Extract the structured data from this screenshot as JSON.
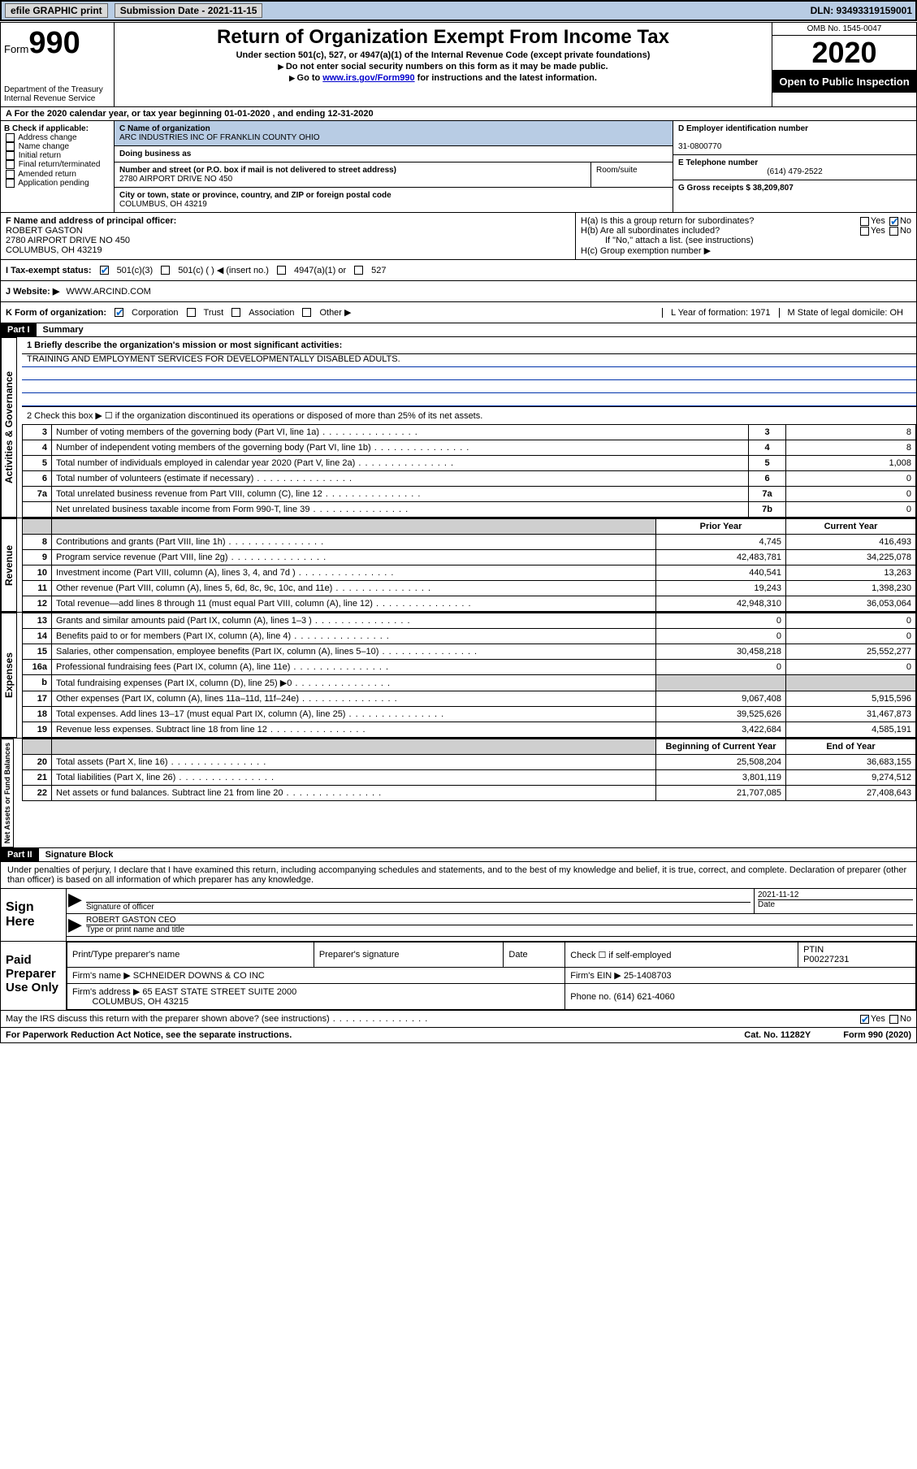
{
  "topbar": {
    "efile_label": "efile GRAPHIC print",
    "submission_label": "Submission Date - 2021-11-15",
    "dln_label": "DLN: 93493319159001"
  },
  "header": {
    "form_word": "Form",
    "form_number": "990",
    "dept": "Department of the Treasury\nInternal Revenue Service",
    "title": "Return of Organization Exempt From Income Tax",
    "subtitle": "Under section 501(c), 527, or 4947(a)(1) of the Internal Revenue Code (except private foundations)",
    "note1": "Do not enter social security numbers on this form as it may be made public.",
    "note2_prefix": "Go to ",
    "note2_link": "www.irs.gov/Form990",
    "note2_suffix": " for instructions and the latest information.",
    "omb": "OMB No. 1545-0047",
    "year": "2020",
    "open_public": "Open to Public Inspection"
  },
  "lineA": "A   For the 2020 calendar year, or tax year beginning 01-01-2020    , and ending 12-31-2020",
  "colB": {
    "heading": "B Check if applicable:",
    "items": [
      "Address change",
      "Name change",
      "Initial return",
      "Final return/terminated",
      "Amended return",
      "Application pending"
    ]
  },
  "colC": {
    "name_label": "C Name of organization",
    "name": "ARC INDUSTRIES INC OF FRANKLIN COUNTY OHIO",
    "dba_label": "Doing business as",
    "street_label": "Number and street (or P.O. box if mail is not delivered to street address)",
    "room_label": "Room/suite",
    "street": "2780 AIRPORT DRIVE NO 450",
    "city_label": "City or town, state or province, country, and ZIP or foreign postal code",
    "city": "COLUMBUS, OH  43219"
  },
  "colD": {
    "ein_label": "D Employer identification number",
    "ein": "31-0800770",
    "phone_label": "E Telephone number",
    "phone": "(614) 479-2522",
    "gross_label": "G Gross receipts $ 38,209,807"
  },
  "rowF": {
    "label": "F  Name and address of principal officer:",
    "name": "ROBERT GASTON",
    "addr1": "2780 AIRPORT DRIVE NO 450",
    "addr2": "COLUMBUS, OH  43219"
  },
  "rowH": {
    "ha": "H(a)  Is this a group return for subordinates?",
    "hb": "H(b)  Are all subordinates included?",
    "hb_note": "If \"No,\" attach a list. (see instructions)",
    "hc": "H(c)  Group exemption number ▶",
    "yes": "Yes",
    "no": "No"
  },
  "taxExempt": {
    "label": "I    Tax-exempt status:",
    "opt1": "501(c)(3)",
    "opt2": "501(c) (   ) ◀ (insert no.)",
    "opt3": "4947(a)(1) or",
    "opt4": "527"
  },
  "website": {
    "label": "J   Website: ▶",
    "value": "WWW.ARCIND.COM"
  },
  "kform": {
    "label": "K Form of organization:",
    "opts": [
      "Corporation",
      "Trust",
      "Association",
      "Other ▶"
    ],
    "year_label": "L Year of formation: 1971",
    "state_label": "M State of legal domicile: OH"
  },
  "part1": {
    "header": "Part I",
    "title": "Summary",
    "q1_label": "1   Briefly describe the organization's mission or most significant activities:",
    "q1_value": "TRAINING AND EMPLOYMENT SERVICES FOR DEVELOPMENTALLY DISABLED ADULTS.",
    "q2": "2    Check this box ▶ ☐  if the organization discontinued its operations or disposed of more than 25% of its net assets.",
    "rows_gov": [
      {
        "n": "3",
        "d": "Number of voting members of the governing body (Part VI, line 1a)",
        "sn": "3",
        "v": "8"
      },
      {
        "n": "4",
        "d": "Number of independent voting members of the governing body (Part VI, line 1b)",
        "sn": "4",
        "v": "8"
      },
      {
        "n": "5",
        "d": "Total number of individuals employed in calendar year 2020 (Part V, line 2a)",
        "sn": "5",
        "v": "1,008"
      },
      {
        "n": "6",
        "d": "Total number of volunteers (estimate if necessary)",
        "sn": "6",
        "v": "0"
      },
      {
        "n": "7a",
        "d": "Total unrelated business revenue from Part VIII, column (C), line 12",
        "sn": "7a",
        "v": "0"
      },
      {
        "n": "",
        "d": "Net unrelated business taxable income from Form 990-T, line 39",
        "sn": "7b",
        "v": "0"
      }
    ],
    "col_prior": "Prior Year",
    "col_current": "Current Year",
    "rows_rev": [
      {
        "n": "8",
        "d": "Contributions and grants (Part VIII, line 1h)",
        "p": "4,745",
        "c": "416,493"
      },
      {
        "n": "9",
        "d": "Program service revenue (Part VIII, line 2g)",
        "p": "42,483,781",
        "c": "34,225,078"
      },
      {
        "n": "10",
        "d": "Investment income (Part VIII, column (A), lines 3, 4, and 7d )",
        "p": "440,541",
        "c": "13,263"
      },
      {
        "n": "11",
        "d": "Other revenue (Part VIII, column (A), lines 5, 6d, 8c, 9c, 10c, and 11e)",
        "p": "19,243",
        "c": "1,398,230"
      },
      {
        "n": "12",
        "d": "Total revenue—add lines 8 through 11 (must equal Part VIII, column (A), line 12)",
        "p": "42,948,310",
        "c": "36,053,064"
      }
    ],
    "rows_exp": [
      {
        "n": "13",
        "d": "Grants and similar amounts paid (Part IX, column (A), lines 1–3 )",
        "p": "0",
        "c": "0"
      },
      {
        "n": "14",
        "d": "Benefits paid to or for members (Part IX, column (A), line 4)",
        "p": "0",
        "c": "0"
      },
      {
        "n": "15",
        "d": "Salaries, other compensation, employee benefits (Part IX, column (A), lines 5–10)",
        "p": "30,458,218",
        "c": "25,552,277"
      },
      {
        "n": "16a",
        "d": "Professional fundraising fees (Part IX, column (A), line 11e)",
        "p": "0",
        "c": "0"
      },
      {
        "n": "b",
        "d": "Total fundraising expenses (Part IX, column (D), line 25) ▶0",
        "p": "shaded",
        "c": "shaded"
      },
      {
        "n": "17",
        "d": "Other expenses (Part IX, column (A), lines 11a–11d, 11f–24e)",
        "p": "9,067,408",
        "c": "5,915,596"
      },
      {
        "n": "18",
        "d": "Total expenses. Add lines 13–17 (must equal Part IX, column (A), line 25)",
        "p": "39,525,626",
        "c": "31,467,873"
      },
      {
        "n": "19",
        "d": "Revenue less expenses. Subtract line 18 from line 12",
        "p": "3,422,684",
        "c": "4,585,191"
      }
    ],
    "col_begin": "Beginning of Current Year",
    "col_end": "End of Year",
    "rows_net": [
      {
        "n": "20",
        "d": "Total assets (Part X, line 16)",
        "p": "25,508,204",
        "c": "36,683,155"
      },
      {
        "n": "21",
        "d": "Total liabilities (Part X, line 26)",
        "p": "3,801,119",
        "c": "9,274,512"
      },
      {
        "n": "22",
        "d": "Net assets or fund balances. Subtract line 21 from line 20",
        "p": "21,707,085",
        "c": "27,408,643"
      }
    ],
    "vert_gov": "Activities & Governance",
    "vert_rev": "Revenue",
    "vert_exp": "Expenses",
    "vert_net": "Net Assets or Fund Balances"
  },
  "part2": {
    "header": "Part II",
    "title": "Signature Block",
    "decl": "Under penalties of perjury, I declare that I have examined this return, including accompanying schedules and statements, and to the best of my knowledge and belief, it is true, correct, and complete. Declaration of preparer (other than officer) is based on all information of which preparer has any knowledge.",
    "sign_here": "Sign Here",
    "sig_officer_label": "Signature of officer",
    "sig_date": "2021-11-12",
    "date_label": "Date",
    "officer_name": "ROBERT GASTON  CEO",
    "officer_name_label": "Type or print name and title",
    "paid_prep": "Paid Preparer Use Only",
    "prep_name_label": "Print/Type preparer's name",
    "prep_sig_label": "Preparer's signature",
    "prep_date_label": "Date",
    "check_self": "Check ☐ if self-employed",
    "ptin_label": "PTIN",
    "ptin": "P00227231",
    "firm_name_label": "Firm's name    ▶",
    "firm_name": "SCHNEIDER DOWNS & CO INC",
    "firm_ein_label": "Firm's EIN ▶",
    "firm_ein": "25-1408703",
    "firm_addr_label": "Firm's address ▶",
    "firm_addr": "65 EAST STATE STREET SUITE 2000",
    "firm_city": "COLUMBUS, OH  43215",
    "firm_phone_label": "Phone no.",
    "firm_phone": "(614) 621-4060",
    "discuss": "May the IRS discuss this return with the preparer shown above? (see instructions)"
  },
  "footer": {
    "left": "For Paperwork Reduction Act Notice, see the separate instructions.",
    "mid": "Cat. No. 11282Y",
    "right": "Form 990 (2020)"
  }
}
